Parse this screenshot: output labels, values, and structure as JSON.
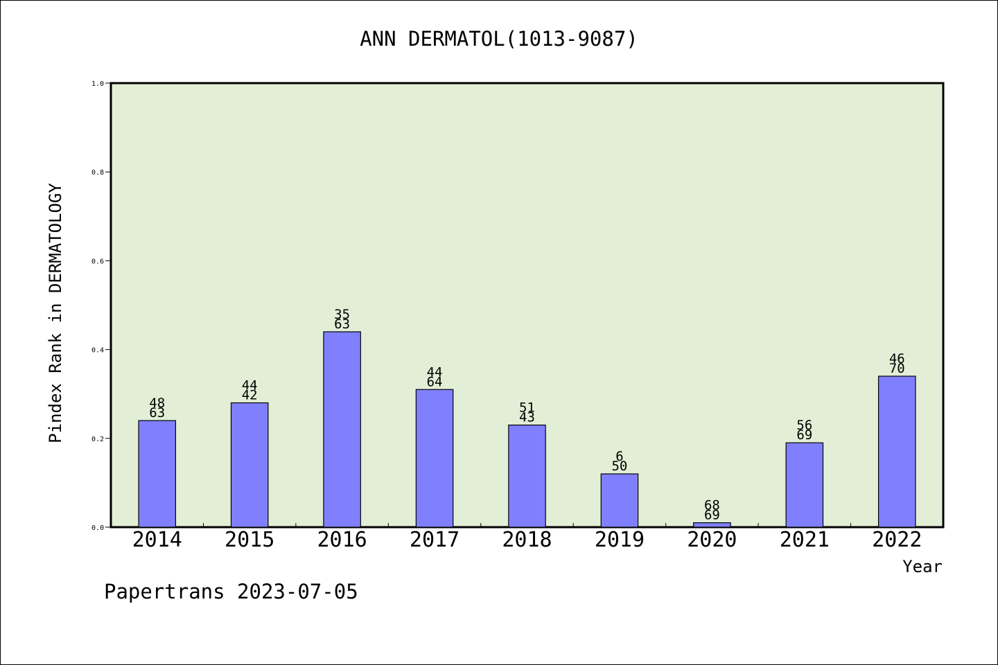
{
  "chart_data": {
    "type": "bar",
    "title": "ANN DERMATOL(1013-9087)",
    "xlabel": "Year",
    "ylabel": "Pindex Rank in DERMATOLOGY",
    "footer": "Papertrans 2023-07-05",
    "categories": [
      "2014",
      "2015",
      "2016",
      "2017",
      "2018",
      "2019",
      "2020",
      "2021",
      "2022"
    ],
    "values": [
      0.24,
      0.28,
      0.44,
      0.31,
      0.23,
      0.12,
      0.01,
      0.19,
      0.34
    ],
    "labels_top": [
      "48",
      "44",
      "35",
      "44",
      "51",
      "6",
      "68",
      "56",
      "46"
    ],
    "labels_bottom": [
      "63",
      "42",
      "63",
      "64",
      "43",
      "50",
      "69",
      "69",
      "70"
    ],
    "ylim": [
      0,
      1.0
    ],
    "yticks": [
      "0.0",
      "0.2",
      "0.4",
      "0.6",
      "0.8",
      "1.0"
    ],
    "grid": false,
    "colors": {
      "plot_bg": "#e2efd6",
      "bar": "#8080ff",
      "bar_edge": "#000000"
    }
  }
}
